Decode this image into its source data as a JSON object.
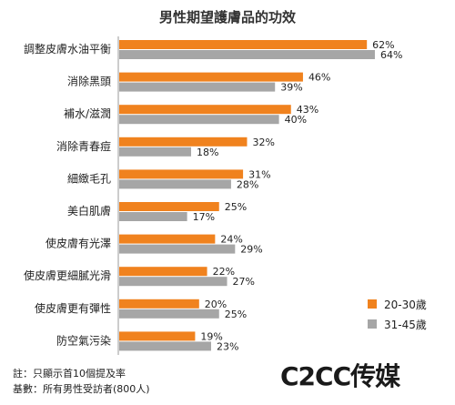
{
  "chart_data": {
    "type": "bar",
    "title": "男性期望護膚品的功效",
    "categories": [
      "調整皮膚水油平衡",
      "消除黑頭",
      "補水/滋潤",
      "消除青春痘",
      "細緻毛孔",
      "美白肌膚",
      "使皮膚有光澤",
      "使皮膚更細膩光滑",
      "使皮膚更有彈性",
      "防空氣污染"
    ],
    "series": [
      {
        "name": "20-30歲",
        "color": "#f0821e",
        "values": [
          62,
          46,
          43,
          32,
          31,
          25,
          24,
          22,
          20,
          19
        ]
      },
      {
        "name": "31-45歲",
        "color": "#a6a6a6",
        "values": [
          64,
          39,
          40,
          18,
          28,
          17,
          29,
          27,
          25,
          23
        ]
      }
    ],
    "value_suffix": "%",
    "xlim": [
      0,
      70
    ],
    "orientation": "horizontal",
    "legend_position": "bottom-right"
  },
  "notes": [
    "註：只顯示首10個提及率",
    "基數：所有男性受訪者(800人)"
  ],
  "logo": "C2CC传媒"
}
